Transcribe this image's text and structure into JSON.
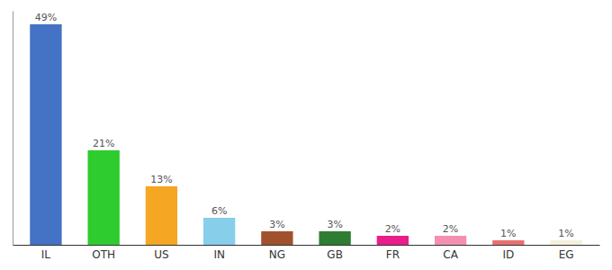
{
  "chart_data": {
    "type": "bar",
    "categories": [
      "IL",
      "OTH",
      "US",
      "IN",
      "NG",
      "GB",
      "FR",
      "CA",
      "ID",
      "EG"
    ],
    "values": [
      49,
      21,
      13,
      6,
      3,
      3,
      2,
      2,
      1,
      1
    ],
    "value_labels": [
      "49%",
      "21%",
      "13%",
      "6%",
      "3%",
      "3%",
      "2%",
      "2%",
      "1%",
      "1%"
    ],
    "colors": [
      "#4472c4",
      "#2ecc2e",
      "#f5a623",
      "#87ceeb",
      "#a0522d",
      "#2e7d32",
      "#e91e8c",
      "#f48fb1",
      "#e87070",
      "#f5f0dc"
    ],
    "ylim": [
      0,
      52
    ],
    "data_labels": true,
    "tick_labels": "x",
    "grid": false
  }
}
